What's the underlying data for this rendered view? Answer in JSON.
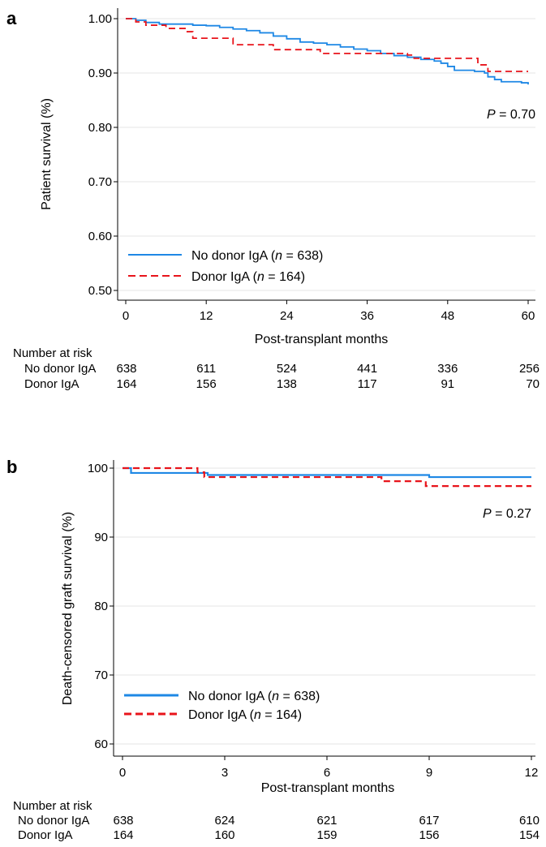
{
  "chart_data": [
    {
      "panel": "a",
      "type": "line",
      "subtype": "kaplan-meier",
      "ylabel": "Patient survival (%)",
      "xlabel": "Post-transplant months",
      "xlim": [
        0,
        60
      ],
      "ylim": [
        0.5,
        1.0
      ],
      "xticks": [
        "0",
        "12",
        "24",
        "36",
        "48",
        "60"
      ],
      "yticks": [
        "0.50",
        "0.60",
        "0.70",
        "0.80",
        "0.90",
        "1.00"
      ],
      "grid": "horizontal",
      "legend_position": "bottom-left",
      "pvalue_prefix": "P",
      "pvalue_text": " = 0.70",
      "series": [
        {
          "legend_prefix": "No donor IgA (",
          "legend_n": "n",
          "legend_suffix": " = 638)",
          "color": "#1E88E5",
          "dash": "solid",
          "points": [
            [
              0,
              1.0
            ],
            [
              1.5,
              0.997
            ],
            [
              3,
              0.993
            ],
            [
              5,
              0.99
            ],
            [
              8,
              0.99
            ],
            [
              10,
              0.988
            ],
            [
              12,
              0.987
            ],
            [
              14,
              0.984
            ],
            [
              16,
              0.981
            ],
            [
              18,
              0.978
            ],
            [
              20,
              0.974
            ],
            [
              22,
              0.968
            ],
            [
              24,
              0.963
            ],
            [
              26,
              0.957
            ],
            [
              28,
              0.955
            ],
            [
              30,
              0.952
            ],
            [
              32,
              0.948
            ],
            [
              34,
              0.944
            ],
            [
              36,
              0.941
            ],
            [
              38,
              0.936
            ],
            [
              40,
              0.932
            ],
            [
              42,
              0.929
            ],
            [
              44,
              0.925
            ],
            [
              46,
              0.922
            ],
            [
              47,
              0.918
            ],
            [
              48,
              0.912
            ],
            [
              49,
              0.905
            ],
            [
              52,
              0.903
            ],
            [
              53.5,
              0.9
            ],
            [
              54,
              0.893
            ],
            [
              55,
              0.888
            ],
            [
              56,
              0.884
            ],
            [
              58,
              0.884
            ],
            [
              59,
              0.882
            ],
            [
              60,
              0.879
            ]
          ]
        },
        {
          "legend_prefix": "Donor IgA (",
          "legend_n": "n",
          "legend_suffix": " = 164)",
          "color": "#E8141B",
          "dash": "dashed",
          "points": [
            [
              0,
              1.0
            ],
            [
              1.5,
              0.994
            ],
            [
              3,
              0.988
            ],
            [
              6,
              0.982
            ],
            [
              9,
              0.976
            ],
            [
              10,
              0.964
            ],
            [
              13,
              0.964
            ],
            [
              16,
              0.952
            ],
            [
              22,
              0.943
            ],
            [
              26,
              0.943
            ],
            [
              29,
              0.936
            ],
            [
              36,
              0.936
            ],
            [
              42,
              0.933
            ],
            [
              43,
              0.927
            ],
            [
              52,
              0.927
            ],
            [
              52.5,
              0.915
            ],
            [
              54,
              0.903
            ],
            [
              60,
              0.903
            ]
          ]
        }
      ],
      "risk_table": {
        "title": "Number at risk",
        "rows": [
          {
            "label": "No donor IgA",
            "values": [
              "638",
              "611",
              "524",
              "441",
              "336",
              "256"
            ]
          },
          {
            "label": "Donor IgA",
            "values": [
              "164",
              "156",
              "138",
              "117",
              "91",
              "70"
            ]
          }
        ]
      }
    },
    {
      "panel": "b",
      "type": "line",
      "subtype": "kaplan-meier",
      "ylabel": "Death-censored graft survival (%)",
      "xlabel": "Post-transplant months",
      "xlim": [
        0,
        12
      ],
      "ylim": [
        60,
        100
      ],
      "xticks": [
        "0",
        "3",
        "6",
        "9",
        "12"
      ],
      "yticks": [
        "60",
        "70",
        "80",
        "90",
        "100"
      ],
      "grid": "horizontal",
      "legend_position": "bottom-left",
      "pvalue_prefix": "P",
      "pvalue_text": " = 0.27",
      "series": [
        {
          "legend_prefix": "No donor IgA (",
          "legend_n": "n",
          "legend_suffix": " = 638)",
          "color": "#1E88E5",
          "dash": "solid",
          "points": [
            [
              0,
              100
            ],
            [
              0.25,
              99.3
            ],
            [
              2.4,
              99.3
            ],
            [
              2.5,
              99.0
            ],
            [
              5.0,
              99.0
            ],
            [
              8.9,
              99.0
            ],
            [
              9.0,
              98.7
            ],
            [
              12,
              98.7
            ]
          ]
        },
        {
          "legend_prefix": "Donor IgA (",
          "legend_n": "n",
          "legend_suffix": " = 164)",
          "color": "#E8141B",
          "dash": "dashed",
          "points": [
            [
              0,
              100
            ],
            [
              2.1,
              100
            ],
            [
              2.2,
              99.4
            ],
            [
              2.4,
              98.7
            ],
            [
              7.5,
              98.7
            ],
            [
              7.6,
              98.1
            ],
            [
              8.8,
              98.1
            ],
            [
              8.9,
              97.4
            ],
            [
              12,
              97.4
            ]
          ]
        }
      ],
      "risk_table": {
        "title": "Number at risk",
        "rows": [
          {
            "label": "No donor IgA",
            "values": [
              "638",
              "624",
              "621",
              "617",
              "610"
            ]
          },
          {
            "label": "Donor IgA",
            "values": [
              "164",
              "160",
              "159",
              "156",
              "154"
            ]
          }
        ]
      }
    }
  ]
}
